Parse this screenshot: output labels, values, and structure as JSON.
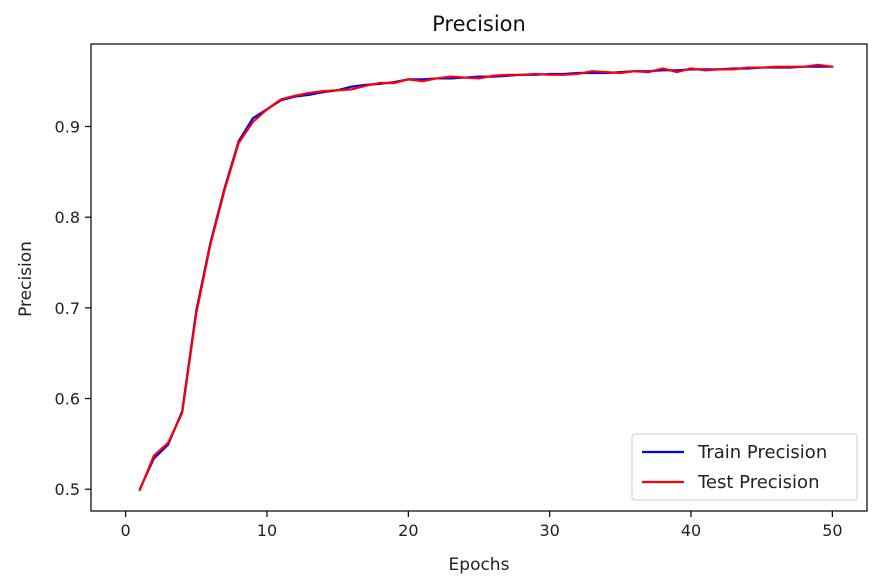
{
  "chart_data": {
    "type": "line",
    "title": "Precision",
    "xlabel": "Epochs",
    "ylabel": "Precision",
    "xlim": [
      -2.45,
      52.45
    ],
    "ylim": [
      0.476,
      0.991
    ],
    "xticks": [
      0,
      10,
      20,
      30,
      40,
      50
    ],
    "yticks": [
      0.5,
      0.6,
      0.7,
      0.8,
      0.9
    ],
    "grid": false,
    "legend_position": "lower-right",
    "x": [
      1,
      2,
      3,
      4,
      5,
      6,
      7,
      8,
      9,
      10,
      11,
      12,
      13,
      14,
      15,
      16,
      17,
      18,
      19,
      20,
      21,
      22,
      23,
      24,
      25,
      26,
      27,
      28,
      29,
      30,
      31,
      32,
      33,
      34,
      35,
      36,
      37,
      38,
      39,
      40,
      41,
      42,
      43,
      44,
      45,
      46,
      47,
      48,
      49,
      50
    ],
    "series": [
      {
        "name": "Train Precision",
        "color": "#0000ff",
        "values": [
          0.5,
          0.534,
          0.549,
          0.586,
          0.697,
          0.772,
          0.832,
          0.884,
          0.909,
          0.919,
          0.929,
          0.933,
          0.935,
          0.938,
          0.94,
          0.944,
          0.946,
          0.947,
          0.949,
          0.952,
          0.952,
          0.953,
          0.953,
          0.954,
          0.955,
          0.955,
          0.956,
          0.957,
          0.957,
          0.958,
          0.958,
          0.959,
          0.959,
          0.959,
          0.96,
          0.961,
          0.961,
          0.962,
          0.962,
          0.963,
          0.963,
          0.963,
          0.964,
          0.964,
          0.965,
          0.965,
          0.965,
          0.966,
          0.966,
          0.966
        ]
      },
      {
        "name": "Test Precision",
        "color": "#ff0000",
        "values": [
          0.499,
          0.537,
          0.551,
          0.584,
          0.694,
          0.77,
          0.83,
          0.882,
          0.905,
          0.919,
          0.93,
          0.934,
          0.937,
          0.939,
          0.94,
          0.941,
          0.945,
          0.948,
          0.948,
          0.952,
          0.95,
          0.953,
          0.955,
          0.954,
          0.953,
          0.956,
          0.957,
          0.957,
          0.958,
          0.957,
          0.957,
          0.958,
          0.961,
          0.96,
          0.959,
          0.961,
          0.96,
          0.964,
          0.96,
          0.964,
          0.962,
          0.963,
          0.963,
          0.965,
          0.965,
          0.966,
          0.966,
          0.966,
          0.968,
          0.966
        ]
      }
    ]
  }
}
